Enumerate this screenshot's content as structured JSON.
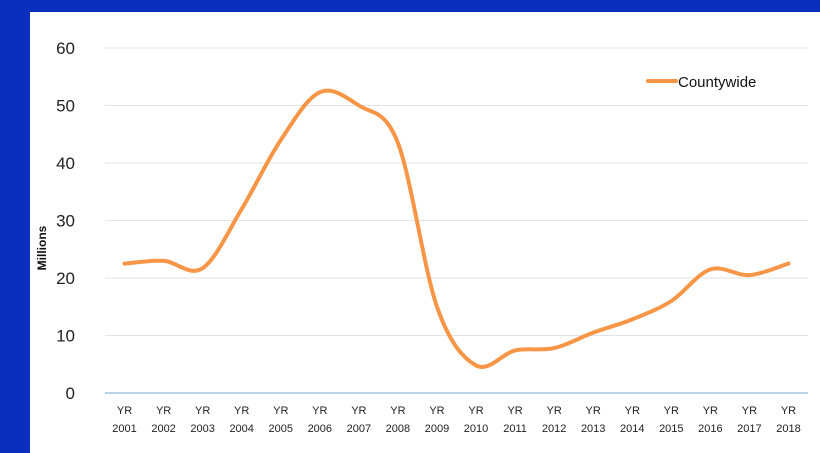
{
  "chart_data": {
    "type": "line",
    "title": "",
    "xlabel": "",
    "ylabel": "Millions",
    "ylim": [
      0,
      60
    ],
    "yticks": [
      0,
      10,
      20,
      30,
      40,
      50,
      60
    ],
    "grid": true,
    "legend_position": "top-right",
    "categories": [
      [
        "YR",
        "2001"
      ],
      [
        "YR",
        "2002"
      ],
      [
        "YR",
        "2003"
      ],
      [
        "YR",
        "2004"
      ],
      [
        "YR",
        "2005"
      ],
      [
        "YR",
        "2006"
      ],
      [
        "YR",
        "2007"
      ],
      [
        "YR",
        "2008"
      ],
      [
        "YR",
        "2009"
      ],
      [
        "YR",
        "2010"
      ],
      [
        "YR",
        "2011"
      ],
      [
        "YR",
        "2012"
      ],
      [
        "YR",
        "2013"
      ],
      [
        "YR",
        "2014"
      ],
      [
        "YR",
        "2015"
      ],
      [
        "YR",
        "2016"
      ],
      [
        "YR",
        "2017"
      ],
      [
        "YR",
        "2018"
      ]
    ],
    "series": [
      {
        "name": "Countywide",
        "color": "#f79646",
        "values": [
          22.5,
          23.0,
          21.7,
          32.0,
          44.0,
          52.3,
          50.0,
          43.5,
          15.0,
          4.8,
          7.4,
          7.8,
          10.5,
          12.8,
          16.0,
          21.5,
          20.5,
          22.5
        ]
      }
    ]
  },
  "colors": {
    "background": "#0a2fbf",
    "panel": "#ffffff",
    "gridline": "#e3e3e3",
    "baseline": "#6fa8d6"
  }
}
